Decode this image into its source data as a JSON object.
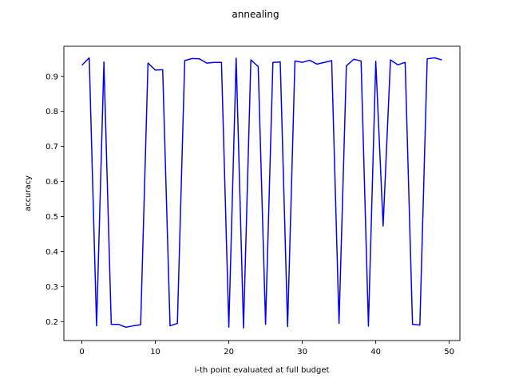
{
  "chart_data": {
    "type": "line",
    "title": "annealing",
    "xlabel": "i-th point evaluated at full budget",
    "ylabel": "accuracy",
    "xlim": [
      -2.45,
      51.45
    ],
    "ylim": [
      0.146,
      0.986
    ],
    "xticks": [
      0,
      10,
      20,
      30,
      40,
      50
    ],
    "yticks": [
      0.2,
      0.3,
      0.4,
      0.5,
      0.6,
      0.7,
      0.8,
      0.9
    ],
    "xtick_labels": [
      "0",
      "10",
      "20",
      "30",
      "40",
      "50"
    ],
    "ytick_labels": [
      "0.2",
      "0.3",
      "0.4",
      "0.5",
      "0.6",
      "0.7",
      "0.8",
      "0.9"
    ],
    "grid": false,
    "legend": "none",
    "series": [
      {
        "color": "#0000ff",
        "x": [
          0,
          1,
          2,
          3,
          4,
          5,
          6,
          7,
          8,
          9,
          10,
          11,
          12,
          13,
          14,
          15,
          16,
          17,
          18,
          19,
          20,
          21,
          22,
          23,
          24,
          25,
          26,
          27,
          28,
          29,
          30,
          31,
          32,
          33,
          34,
          35,
          36,
          37,
          38,
          39,
          40,
          41,
          42,
          43,
          44,
          45,
          46,
          47,
          48,
          49
        ],
        "y": [
          0.932,
          0.953,
          0.188,
          0.941,
          0.192,
          0.192,
          0.184,
          0.188,
          0.191,
          0.938,
          0.918,
          0.919,
          0.188,
          0.195,
          0.945,
          0.951,
          0.95,
          0.938,
          0.94,
          0.94,
          0.184,
          0.952,
          0.182,
          0.947,
          0.928,
          0.192,
          0.94,
          0.941,
          0.186,
          0.944,
          0.94,
          0.946,
          0.935,
          0.94,
          0.945,
          0.195,
          0.93,
          0.949,
          0.944,
          0.187,
          0.943,
          0.473,
          0.947,
          0.933,
          0.94,
          0.192,
          0.19,
          0.95,
          0.953,
          0.947
        ]
      }
    ]
  }
}
